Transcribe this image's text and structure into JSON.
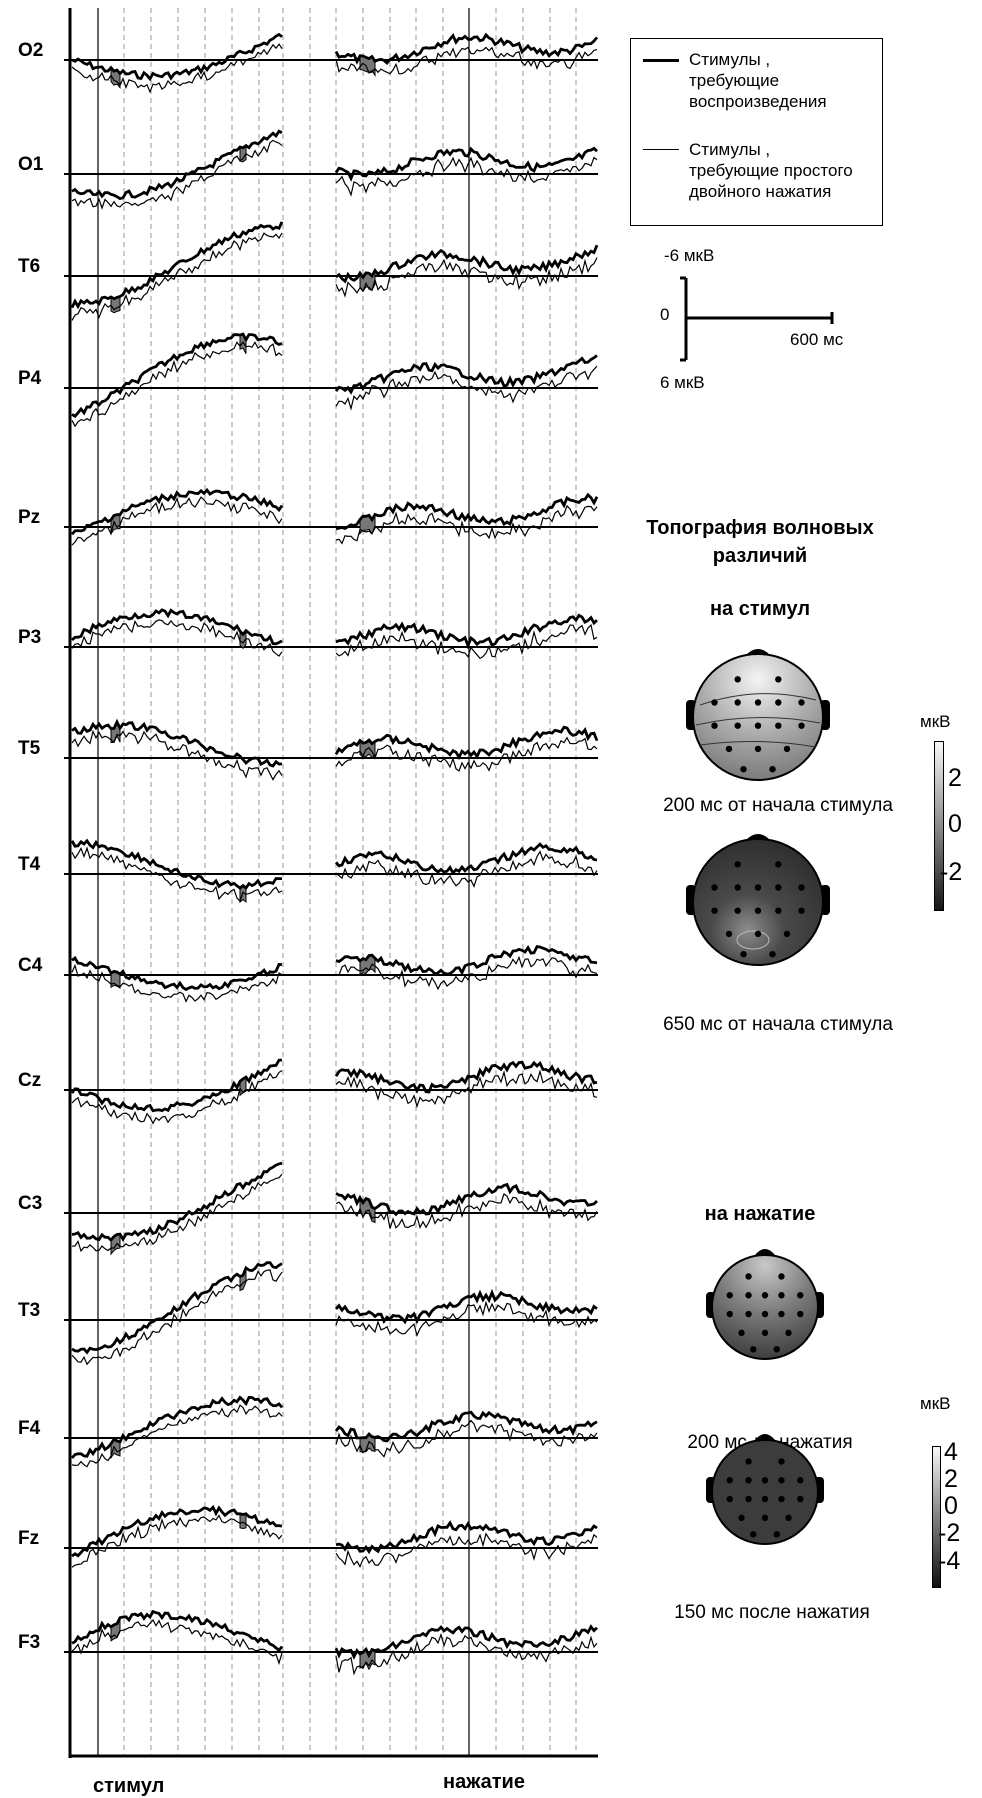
{
  "chart_data": {
    "type": "line",
    "channels": [
      "O2",
      "O1",
      "T6",
      "P4",
      "Pz",
      "P3",
      "T5",
      "T4",
      "C4",
      "Cz",
      "C3",
      "T3",
      "F4",
      "Fz",
      "F3"
    ],
    "x_markers": {
      "stimulus": "стимул",
      "press": "нажатие"
    },
    "series": [
      {
        "name": "Стимулы , требующие воспроизведения",
        "style": "thick"
      },
      {
        "name": "Стимулы , требующие простого двойного нажатия",
        "style": "thin"
      }
    ],
    "scale": {
      "amp_neg": "-6 мкВ",
      "zero": "0",
      "time": "600 мс",
      "amp_pos": "6 мкВ"
    },
    "grid": "dashed vertical",
    "polarity": "negative up"
  },
  "legend": {
    "item1": "Стимулы ,\nтребующие\nвоспроизведения",
    "item2": "Стимулы ,\nтребующие простого\nдвойного нажатия"
  },
  "topography": {
    "title": "Топография волновых\nразличий",
    "stim_title": "на стимул",
    "press_title": "на нажатие",
    "captions": [
      "200 мс от начала стимула",
      "650 мс от начала стимула",
      "200 мс до нажатия",
      "150 мс после нажатия"
    ],
    "colorbar1": {
      "unit": "мкВ",
      "ticks": [
        "2",
        "0",
        "-2"
      ]
    },
    "colorbar2": {
      "unit": "мкВ",
      "ticks": [
        "4",
        "2",
        "0",
        "-2",
        "-4"
      ]
    }
  }
}
